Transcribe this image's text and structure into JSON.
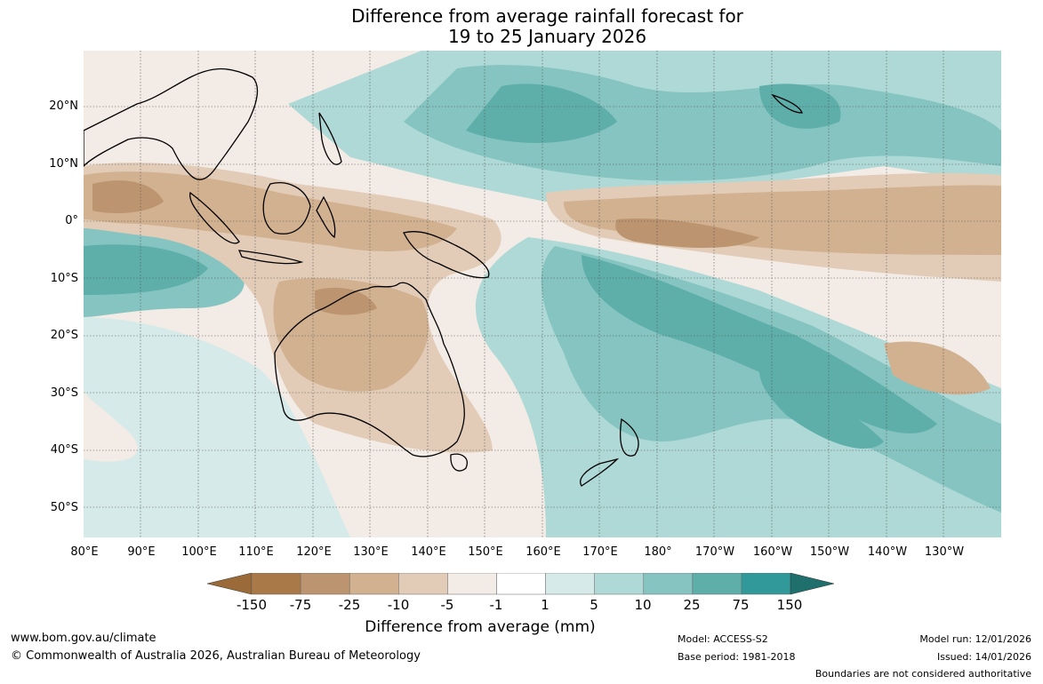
{
  "title": {
    "line1": "Difference from average rainfall forecast for",
    "line2": "19 to 25 January 2026"
  },
  "map": {
    "lat_labels": [
      "20°N",
      "10°N",
      "0°",
      "10°S",
      "20°S",
      "30°S",
      "40°S",
      "50°S"
    ],
    "lon_labels": [
      "80°E",
      "90°E",
      "100°E",
      "110°E",
      "120°E",
      "130°E",
      "140°E",
      "150°E",
      "160°E",
      "170°E",
      "180°",
      "170°W",
      "160°W",
      "150°W",
      "140°W",
      "130°W"
    ]
  },
  "colorbar": {
    "ticks": [
      "-150",
      "-75",
      "-25",
      "-10",
      "-5",
      "-1",
      "1",
      "5",
      "10",
      "25",
      "75",
      "150"
    ],
    "colors": [
      "#a97a47",
      "#bd9470",
      "#d1b190",
      "#e2ccb7",
      "#f3ebe5",
      "#ffffff",
      "#d6ebe9",
      "#aed9d6",
      "#85c4c0",
      "#5eaeaa",
      "#32999a"
    ],
    "under_color": "#9a6b38",
    "over_color": "#1f6f6d",
    "label": "Difference from average (mm)"
  },
  "footer": {
    "website": "www.bom.gov.au/climate",
    "copyright": "© Commonwealth of Australia 2026, Australian Bureau of Meteorology",
    "model": "Model: ACCESS-S2",
    "base_period": "Base period: 1981-2018",
    "model_run": "Model run: 12/01/2026",
    "issued": "Issued: 14/01/2026",
    "disclaimer": "Boundaries are not considered authoritative"
  }
}
